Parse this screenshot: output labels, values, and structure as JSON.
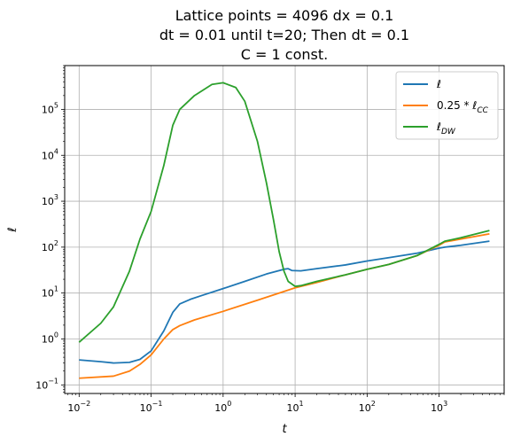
{
  "chart_data": {
    "type": "line",
    "title": [
      "Lattice points = 4096 dx = 0.1",
      "dt = 0.01 until t=20; Then dt = 0.1",
      "C = 1 const."
    ],
    "xlabel": "t",
    "ylabel": "ℓ",
    "xscale": "log",
    "yscale": "log",
    "xlim": [
      0.0063,
      8000
    ],
    "ylim": [
      0.065,
      900000
    ],
    "grid": true,
    "legend_position": "top-right",
    "x_ticks": [
      {
        "v": 0.01,
        "b": "10",
        "e": "−2"
      },
      {
        "v": 0.1,
        "b": "10",
        "e": "−1"
      },
      {
        "v": 1,
        "b": "10",
        "e": "0"
      },
      {
        "v": 10,
        "b": "10",
        "e": "1"
      },
      {
        "v": 100,
        "b": "10",
        "e": "2"
      },
      {
        "v": 1000,
        "b": "10",
        "e": "3"
      }
    ],
    "y_ticks": [
      {
        "v": 0.1,
        "b": "10",
        "e": "−1"
      },
      {
        "v": 1,
        "b": "10",
        "e": "0"
      },
      {
        "v": 10,
        "b": "10",
        "e": "1"
      },
      {
        "v": 100,
        "b": "10",
        "e": "2"
      },
      {
        "v": 1000,
        "b": "10",
        "e": "3"
      },
      {
        "v": 10000,
        "b": "10",
        "e": "4"
      },
      {
        "v": 100000,
        "b": "10",
        "e": "5"
      }
    ],
    "series": [
      {
        "name": "ℓ",
        "legend": {
          "base": "ℓ",
          "sub": ""
        },
        "color": "#1f77b4",
        "points": [
          [
            0.01,
            0.35
          ],
          [
            0.02,
            0.32
          ],
          [
            0.03,
            0.3
          ],
          [
            0.05,
            0.31
          ],
          [
            0.07,
            0.36
          ],
          [
            0.1,
            0.55
          ],
          [
            0.15,
            1.5
          ],
          [
            0.2,
            3.8
          ],
          [
            0.25,
            5.8
          ],
          [
            0.35,
            7.3
          ],
          [
            0.5,
            8.8
          ],
          [
            1,
            12.5
          ],
          [
            2,
            18
          ],
          [
            4,
            26
          ],
          [
            7,
            33
          ],
          [
            8,
            34
          ],
          [
            9,
            31
          ],
          [
            12,
            30.5
          ],
          [
            20,
            34
          ],
          [
            50,
            41
          ],
          [
            100,
            50
          ],
          [
            200,
            59
          ],
          [
            500,
            74
          ],
          [
            1000,
            95
          ],
          [
            1200,
            100
          ],
          [
            2000,
            110
          ],
          [
            5000,
            135
          ]
        ]
      },
      {
        "name": "0.25 * ℓ_CC",
        "legend": {
          "base": "0.25 * ℓ",
          "sub": "CC"
        },
        "color": "#ff7f0e",
        "points": [
          [
            0.01,
            0.14
          ],
          [
            0.03,
            0.155
          ],
          [
            0.05,
            0.2
          ],
          [
            0.07,
            0.28
          ],
          [
            0.1,
            0.45
          ],
          [
            0.15,
            1.0
          ],
          [
            0.2,
            1.6
          ],
          [
            0.25,
            1.95
          ],
          [
            0.4,
            2.6
          ],
          [
            1,
            4
          ],
          [
            3,
            7
          ],
          [
            10,
            13
          ],
          [
            20,
            17
          ],
          [
            50,
            25
          ],
          [
            100,
            33
          ],
          [
            200,
            42
          ],
          [
            500,
            66
          ],
          [
            1000,
            110
          ],
          [
            1200,
            130
          ],
          [
            2000,
            150
          ],
          [
            5000,
            195
          ]
        ]
      },
      {
        "name": "ℓ_DW",
        "legend": {
          "base": "ℓ",
          "sub": "DW"
        },
        "color": "#2ca02c",
        "points": [
          [
            0.01,
            0.85
          ],
          [
            0.02,
            2.2
          ],
          [
            0.03,
            5
          ],
          [
            0.05,
            30
          ],
          [
            0.07,
            150
          ],
          [
            0.1,
            600
          ],
          [
            0.15,
            6000
          ],
          [
            0.2,
            45000
          ],
          [
            0.25,
            100000
          ],
          [
            0.4,
            200000
          ],
          [
            0.7,
            350000
          ],
          [
            1,
            380000
          ],
          [
            1.5,
            300000
          ],
          [
            2,
            150000
          ],
          [
            3,
            20000
          ],
          [
            4,
            2500
          ],
          [
            5,
            400
          ],
          [
            6,
            80
          ],
          [
            7,
            30
          ],
          [
            8,
            18
          ],
          [
            10,
            14
          ],
          [
            12,
            14.5
          ],
          [
            20,
            18
          ],
          [
            50,
            25
          ],
          [
            100,
            33
          ],
          [
            200,
            42
          ],
          [
            500,
            66
          ],
          [
            1000,
            115
          ],
          [
            1200,
            135
          ],
          [
            2000,
            160
          ],
          [
            5000,
            230
          ]
        ]
      }
    ]
  }
}
